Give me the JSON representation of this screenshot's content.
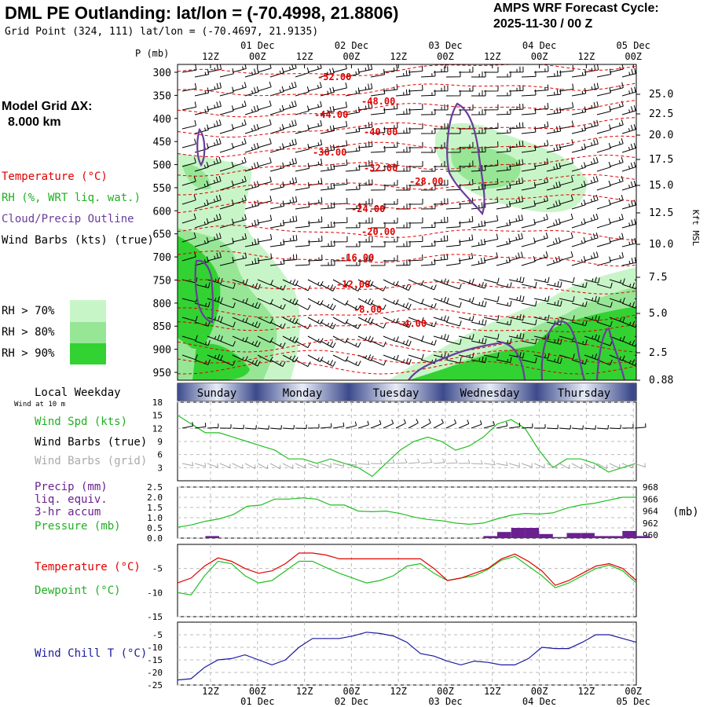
{
  "header": {
    "title": "DML PE Outlanding:  lat/lon = (-70.4998, 21.8806)",
    "grid_point": "Grid Point (324, 111) lat/lon = (-70.4697, 21.9135)",
    "cycle_line1": "AMPS WRF Forecast Cycle:",
    "cycle_line2": "2025-11-30 / 00  Z"
  },
  "sidebar": {
    "model_grid_label": "Model Grid ΔX:",
    "model_grid_value": "8.000 km",
    "legend_temperature": "Temperature (°C)",
    "legend_rh": "RH (%, WRT liq. wat.)",
    "legend_cloud": "Cloud/Precip Outline",
    "legend_wind": "Wind Barbs (kts) (true)",
    "rh70": "RH > 70%",
    "rh80": "RH > 80%",
    "rh90": "RH > 90%",
    "local_weekday": "Local Weekday",
    "wind_10m": "Wind at 10 m",
    "wind_spd": "Wind Spd (kts)",
    "wind_barbs_true": "Wind Barbs (true)",
    "wind_barbs_grid": "Wind Barbs (grid)",
    "precip_1": "Precip (mm)",
    "precip_2": "liq. equiv.",
    "precip_3": "3-hr accum",
    "pressure": "Pressure (mb)",
    "temperature": "Temperature (°C)",
    "dewpoint": "Dewpoint (°C)",
    "wind_chill": "Wind Chill T (°C)"
  },
  "colors": {
    "temp": "#e00000",
    "rh70": "#c8f5c8",
    "rh80": "#96e696",
    "rh90": "#32d232",
    "cloud": "#6a3d9a",
    "dew": "#20c020",
    "press": "#20c020",
    "precip": "#6a2090",
    "chill": "#1a1aa0",
    "gray": "#aaaaaa"
  },
  "chart_data": {
    "type": "multi-panel meteogram",
    "time_axis": {
      "top_ticks": [
        "12Z",
        "00Z",
        "12Z",
        "00Z",
        "12Z",
        "00Z",
        "12Z",
        "00Z",
        "12Z",
        "00Z"
      ],
      "date_labels": [
        "01 Dec",
        "02 Dec",
        "03 Dec",
        "04 Dec",
        "05 Dec"
      ],
      "bottom_ticks": [
        "12Z",
        "00Z",
        "12Z",
        "00Z",
        "12Z",
        "00Z",
        "12Z",
        "00Z",
        "12Z",
        "00Z"
      ]
    },
    "weekdays": [
      "Sunday",
      "Monday",
      "Tuesday",
      "Wednesday",
      "Thursday"
    ],
    "cross_section": {
      "ylabel_left": "P (mb)",
      "ylabel_right": "Kft MSL",
      "pressure_levels": [
        300,
        350,
        400,
        450,
        500,
        550,
        600,
        650,
        700,
        750,
        800,
        850,
        900,
        950
      ],
      "kft_ticks": [
        "25.0",
        "22.5",
        "20.0",
        "17.5",
        "15.0",
        "12.5",
        "10.0",
        "7.5",
        "5.0",
        "2.5",
        "0.88"
      ],
      "temp_contour_labels": [
        "-52.00",
        "-48.00",
        "-44.00",
        "-40.00",
        "-36.00",
        "-32.00",
        "-28.00",
        "-24.00",
        "-20.00",
        "-16.00",
        "-12.00",
        "-8.00",
        "-4.00"
      ]
    },
    "wind_panel": {
      "yticks": [
        "18",
        "15",
        "12",
        "9",
        "6",
        "3"
      ],
      "ylim": [
        0,
        18
      ],
      "wind_speed_kts": [
        15,
        13,
        11,
        11,
        10,
        9,
        8,
        7,
        5,
        5,
        4,
        5,
        4,
        3,
        1,
        4,
        7,
        9,
        10,
        9,
        7,
        8,
        10,
        13,
        14,
        12,
        7,
        3,
        5,
        5,
        4,
        2,
        3,
        4
      ]
    },
    "precip_panel": {
      "yticks_left": [
        "2.5",
        "2.0",
        "1.5",
        "1.0",
        "0.5",
        "0.0"
      ],
      "yticks_right": [
        "968",
        "966",
        "964",
        "962",
        "960"
      ],
      "precip_ylim": [
        0,
        2.5
      ],
      "pressure_ylim": [
        959.5,
        968
      ],
      "pressure_unit": "(mb)",
      "pressure_mb": [
        961.3,
        961.7,
        962.3,
        962.7,
        963.4,
        964.8,
        965.0,
        966.0,
        966.0,
        966.2,
        966.0,
        965.0,
        965.0,
        964.0,
        963.9,
        964.0,
        963.6,
        963.0,
        962.6,
        962.4,
        962.0,
        961.8,
        962.0,
        962.7,
        963.3,
        963.6,
        963.5,
        963.7,
        964.5,
        965.0,
        965.3,
        965.8,
        966.3,
        966.3
      ],
      "precip_bars_mm": [
        {
          "step": 2,
          "mm": 0.1
        },
        {
          "step": 22,
          "mm": 0.1
        },
        {
          "step": 23,
          "mm": 0.3
        },
        {
          "step": 24,
          "mm": 0.5
        },
        {
          "step": 25,
          "mm": 0.5
        },
        {
          "step": 26,
          "mm": 0.2
        },
        {
          "step": 27,
          "mm": 0.05
        },
        {
          "step": 28,
          "mm": 0.25
        },
        {
          "step": 29,
          "mm": 0.25
        },
        {
          "step": 30,
          "mm": 0.1
        },
        {
          "step": 31,
          "mm": 0.1
        },
        {
          "step": 32,
          "mm": 0.35
        },
        {
          "step": 33,
          "mm": 0.1
        }
      ]
    },
    "temp_panel": {
      "yticks": [
        "-5",
        "-10",
        "-15"
      ],
      "ylim": [
        -15,
        0
      ],
      "temperature_c": [
        -8,
        -7,
        -4.5,
        -2.8,
        -3.5,
        -5,
        -6,
        -5.5,
        -4,
        -1.8,
        -1.8,
        -2.2,
        -3,
        -3,
        -3,
        -3,
        -3,
        -3,
        -3,
        -5,
        -7.5,
        -7,
        -6,
        -5,
        -3,
        -2,
        -3.5,
        -5.5,
        -8.5,
        -7.5,
        -6,
        -4.5,
        -4,
        -5,
        -7.5
      ],
      "dewpoint_c": [
        -10,
        -10.5,
        -6.5,
        -3.5,
        -4,
        -6.5,
        -8,
        -7.5,
        -5.5,
        -3.5,
        -3.5,
        -4.8,
        -6,
        -7,
        -8,
        -7.5,
        -6.5,
        -4.5,
        -4,
        -6,
        -7.5,
        -7,
        -6.5,
        -5.2,
        -3.3,
        -2.5,
        -4.5,
        -6.5,
        -9,
        -8,
        -6.5,
        -5,
        -4.3,
        -5.5,
        -8
      ]
    },
    "chill_panel": {
      "yticks": [
        "-5",
        "-10",
        "-15",
        "-20",
        "-25"
      ],
      "ylim": [
        -25,
        0
      ],
      "wind_chill_c": [
        -23,
        -22.5,
        -18,
        -15,
        -14.5,
        -13,
        -15,
        -17,
        -15,
        -10,
        -6.5,
        -6.5,
        -6.5,
        -5.5,
        -4,
        -4.5,
        -5.5,
        -8,
        -12.5,
        -13.5,
        -15.5,
        -17,
        -15.5,
        -16,
        -17,
        -17,
        -14.5,
        -10,
        -10.5,
        -10.5,
        -8,
        -5,
        -5,
        -6.5,
        -8
      ]
    }
  }
}
